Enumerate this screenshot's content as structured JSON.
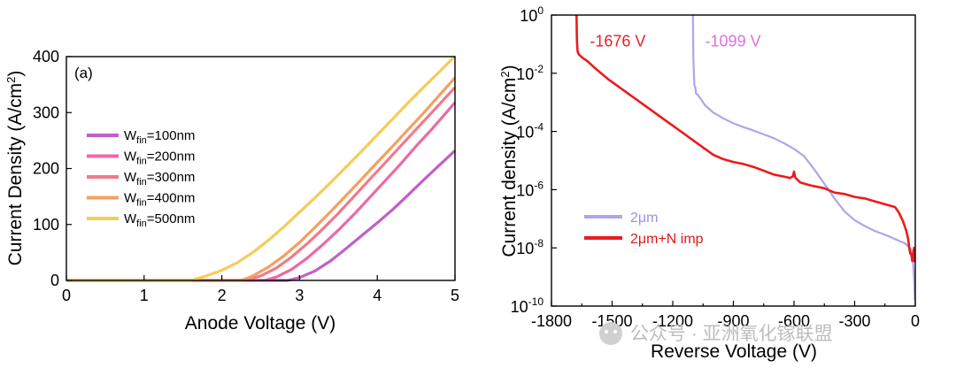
{
  "chart_data": [
    {
      "type": "line",
      "panel_label": "(a)",
      "xlabel": "Anode Voltage (V)",
      "ylabel": "Current Density (A/cm",
      "ylabel_sup": "2",
      "ylabel_close": ")",
      "xlim": [
        0,
        5
      ],
      "ylim": [
        0,
        400
      ],
      "xticks": [
        0,
        1,
        2,
        3,
        4,
        5
      ],
      "yticks": [
        0,
        100,
        200,
        300,
        400
      ],
      "series": [
        {
          "name_main": "W",
          "name_sub": "fin",
          "name_rest": "=100nm",
          "color": "#c060c8",
          "x": [
            0,
            2.85,
            3.0,
            3.2,
            3.4,
            3.6,
            3.8,
            4.0,
            4.2,
            4.4,
            4.6,
            4.8,
            5.0
          ],
          "y": [
            0,
            0,
            5,
            17,
            35,
            57,
            80,
            103,
            127,
            153,
            180,
            206,
            232
          ]
        },
        {
          "name_main": "W",
          "name_sub": "fin",
          "name_rest": "=200nm",
          "color": "#ec6aa4",
          "x": [
            0,
            2.55,
            2.7,
            2.9,
            3.1,
            3.3,
            3.5,
            3.7,
            3.9,
            4.1,
            4.3,
            4.5,
            4.7,
            5.0
          ],
          "y": [
            0,
            0,
            6,
            20,
            40,
            64,
            90,
            118,
            148,
            178,
            208,
            240,
            270,
            318
          ]
        },
        {
          "name_main": "W",
          "name_sub": "fin",
          "name_rest": "=300nm",
          "color": "#f07a8c",
          "x": [
            0,
            2.3,
            2.5,
            2.7,
            2.9,
            3.1,
            3.3,
            3.5,
            3.7,
            3.9,
            4.1,
            4.3,
            4.5,
            4.7,
            5.0
          ],
          "y": [
            0,
            0,
            8,
            22,
            42,
            66,
            92,
            120,
            150,
            180,
            210,
            240,
            270,
            300,
            345
          ]
        },
        {
          "name_main": "W",
          "name_sub": "fin",
          "name_rest": "=400nm",
          "color": "#f4a060",
          "x": [
            0,
            2.25,
            2.4,
            2.6,
            2.8,
            3.0,
            3.2,
            3.4,
            3.6,
            3.8,
            4.0,
            4.2,
            4.4,
            4.6,
            4.8,
            5.0
          ],
          "y": [
            0,
            0,
            8,
            24,
            44,
            68,
            95,
            123,
            152,
            181,
            211,
            240,
            270,
            300,
            331,
            362
          ]
        },
        {
          "name_main": "W",
          "name_sub": "fin",
          "name_rest": "=500nm",
          "color": "#f6cc58",
          "x": [
            0,
            1.6,
            1.8,
            2.0,
            2.2,
            2.4,
            2.6,
            2.8,
            3.0,
            3.2,
            3.4,
            3.6,
            3.8,
            4.0,
            4.2,
            4.4,
            4.6,
            4.8,
            5.0
          ],
          "y": [
            0,
            0,
            8,
            18,
            32,
            50,
            72,
            96,
            122,
            148,
            175,
            203,
            231,
            260,
            289,
            318,
            346,
            373,
            401
          ]
        }
      ]
    },
    {
      "type": "line",
      "yscale": "log",
      "xlabel": "Reverse Voltage (V)",
      "ylabel": "Current density (A/cm",
      "ylabel_sup": "2",
      "ylabel_close": ")",
      "xlim": [
        -1800,
        0
      ],
      "ylim_exp": [
        -10,
        0
      ],
      "xticks": [
        -1800,
        -1500,
        -1200,
        -900,
        -600,
        -300,
        0
      ],
      "yticks_exp": [
        -10,
        -8,
        -6,
        -4,
        -2,
        0
      ],
      "ytick_base": "10",
      "annotations": [
        {
          "text": "-1676 V",
          "color": "#e8202a",
          "x": -1680,
          "y_exp": -0.9
        },
        {
          "text": "-1099 V",
          "color": "#e070e0",
          "x": -1110,
          "y_exp": -0.9
        }
      ],
      "series": [
        {
          "name": "2μm",
          "color": "#b0a4ec",
          "x": [
            -1100,
            -1098,
            -1093,
            -1088,
            -1085,
            -1075,
            -1060,
            -1040,
            -1000,
            -950,
            -900,
            -850,
            -800,
            -750,
            -700,
            -650,
            -600,
            -550,
            -500,
            -450,
            -400,
            -350,
            -300,
            -250,
            -200,
            -150,
            -100,
            -50,
            -20,
            -10,
            -5,
            -2
          ],
          "y_exp": [
            0.0,
            -1.5,
            -2.4,
            -2.5,
            -2.7,
            -2.75,
            -2.9,
            -3.1,
            -3.35,
            -3.55,
            -3.72,
            -3.85,
            -3.97,
            -4.1,
            -4.23,
            -4.4,
            -4.6,
            -4.85,
            -5.3,
            -5.8,
            -6.3,
            -6.75,
            -7.05,
            -7.25,
            -7.42,
            -7.55,
            -7.7,
            -7.85,
            -8.05,
            -8.6,
            -9.2,
            -9.8
          ]
        },
        {
          "name": "2μm+N imp",
          "color": "#ea1c1c",
          "x": [
            -1676,
            -1674,
            -1671,
            -1665,
            -1650,
            -1620,
            -1580,
            -1520,
            -1450,
            -1380,
            -1300,
            -1220,
            -1150,
            -1080,
            -1000,
            -950,
            -900,
            -850,
            -800,
            -750,
            -700,
            -650,
            -620,
            -606,
            -600,
            -594,
            -570,
            -520,
            -450,
            -400,
            -350,
            -300,
            -250,
            -200,
            -150,
            -100,
            -80,
            -60,
            -45,
            -35,
            -30,
            -25,
            -20,
            -15,
            -10,
            -6,
            -3
          ],
          "y_exp": [
            0.0,
            -0.9,
            -1.25,
            -1.35,
            -1.45,
            -1.6,
            -1.85,
            -2.2,
            -2.55,
            -2.9,
            -3.3,
            -3.7,
            -4.05,
            -4.4,
            -4.8,
            -4.95,
            -5.05,
            -5.12,
            -5.22,
            -5.35,
            -5.48,
            -5.55,
            -5.6,
            -5.55,
            -5.38,
            -5.58,
            -5.75,
            -5.85,
            -5.95,
            -6.1,
            -6.15,
            -6.25,
            -6.3,
            -6.4,
            -6.5,
            -6.6,
            -6.8,
            -7.1,
            -7.4,
            -7.7,
            -8.0,
            -8.2,
            -8.2,
            -8.45,
            -8.2,
            -8.0,
            -8.5
          ]
        }
      ]
    }
  ],
  "watermark": {
    "text": "公众号 · 亚洲氧化镓联盟"
  }
}
